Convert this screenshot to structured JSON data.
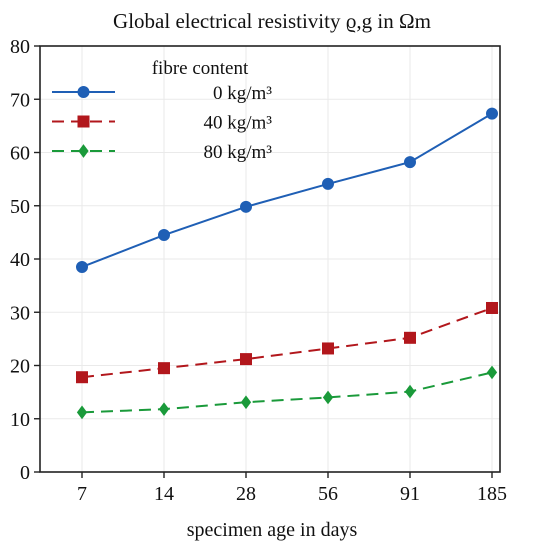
{
  "chart_data": {
    "type": "line",
    "title": "Global electrical resistivity ϱ,g in Ωm",
    "xlabel": "specimen age in days",
    "ylabel": "",
    "categories": [
      "7",
      "14",
      "28",
      "56",
      "91",
      "185"
    ],
    "ylim": [
      0,
      80
    ],
    "yticks": [
      0,
      10,
      20,
      30,
      40,
      50,
      60,
      70,
      80
    ],
    "grid": true,
    "legend": {
      "title": "fibre content",
      "placement": "top-left"
    },
    "series": [
      {
        "name": "0 kg/m³",
        "values": [
          38.5,
          44.5,
          49.8,
          54.1,
          58.2,
          67.3
        ],
        "color": "#1f5fb5",
        "marker": "circle",
        "dash": "solid"
      },
      {
        "name": "40 kg/m³",
        "values": [
          17.8,
          19.5,
          21.2,
          23.2,
          25.2,
          30.8
        ],
        "color": "#b2171c",
        "marker": "square",
        "dash": "dashed"
      },
      {
        "name": "80 kg/m³",
        "values": [
          11.2,
          11.8,
          13.1,
          14.0,
          15.1,
          18.7
        ],
        "color": "#1a9a3a",
        "marker": "diamond",
        "dash": "dashed"
      }
    ]
  }
}
